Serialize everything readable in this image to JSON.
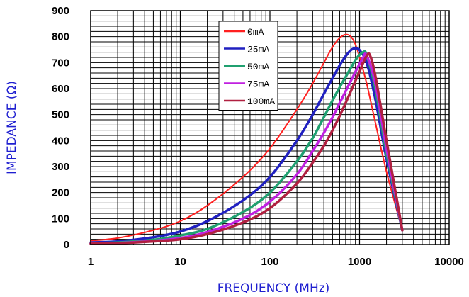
{
  "chart_data": {
    "type": "line",
    "xlabel": "FREQUENCY (MHz)",
    "ylabel": "IMPEDANCE (Ω)",
    "xscale": "log",
    "xlim": [
      1,
      10000
    ],
    "ylim": [
      0,
      900
    ],
    "x_ticks": [
      "1",
      "10",
      "100",
      "1000",
      "10000"
    ],
    "y_ticks": [
      "0",
      "100",
      "200",
      "300",
      "400",
      "500",
      "600",
      "700",
      "800",
      "900"
    ],
    "grid": true,
    "legend_position": "top-center",
    "series": [
      {
        "name": "0mA",
        "color": "#ff2020",
        "x": [
          1,
          2,
          5,
          10,
          20,
          50,
          100,
          200,
          300,
          400,
          500,
          600,
          700,
          800,
          900,
          1000,
          1200,
          1500,
          2000,
          3000
        ],
        "y": [
          15,
          25,
          55,
          90,
          150,
          260,
          370,
          520,
          620,
          700,
          760,
          795,
          808,
          800,
          770,
          720,
          620,
          470,
          280,
          55
        ]
      },
      {
        "name": "25mA",
        "color": "#2020c0",
        "x": [
          1,
          2,
          5,
          10,
          20,
          50,
          100,
          200,
          300,
          400,
          500,
          600,
          700,
          800,
          900,
          1000,
          1200,
          1500,
          2000,
          3000
        ],
        "y": [
          8,
          12,
          28,
          50,
          90,
          170,
          260,
          400,
          500,
          580,
          640,
          690,
          725,
          748,
          755,
          748,
          700,
          560,
          330,
          55
        ]
      },
      {
        "name": "50mA",
        "color": "#20a070",
        "x": [
          1,
          2,
          5,
          10,
          20,
          50,
          100,
          200,
          300,
          400,
          500,
          600,
          700,
          800,
          900,
          1000,
          1100,
          1200,
          1500,
          2000,
          3000
        ],
        "y": [
          5,
          8,
          18,
          35,
          60,
          125,
          200,
          320,
          410,
          490,
          555,
          605,
          645,
          680,
          710,
          730,
          740,
          730,
          600,
          350,
          55
        ]
      },
      {
        "name": "75mA",
        "color": "#c020e0",
        "x": [
          1,
          2,
          5,
          10,
          20,
          50,
          100,
          200,
          300,
          400,
          500,
          600,
          700,
          800,
          900,
          1000,
          1100,
          1200,
          1500,
          2000,
          3000
        ],
        "y": [
          4,
          6,
          14,
          25,
          48,
          100,
          165,
          270,
          360,
          430,
          490,
          545,
          590,
          630,
          665,
          695,
          720,
          728,
          620,
          370,
          55
        ]
      },
      {
        "name": "100mA",
        "color": "#b02040",
        "x": [
          1,
          2,
          5,
          10,
          20,
          50,
          100,
          200,
          300,
          400,
          500,
          600,
          700,
          800,
          900,
          1000,
          1100,
          1200,
          1300,
          1500,
          2000,
          3000
        ],
        "y": [
          3,
          5,
          12,
          20,
          40,
          85,
          140,
          235,
          315,
          380,
          440,
          495,
          545,
          590,
          630,
          665,
          700,
          725,
          730,
          650,
          400,
          55
        ]
      }
    ]
  }
}
